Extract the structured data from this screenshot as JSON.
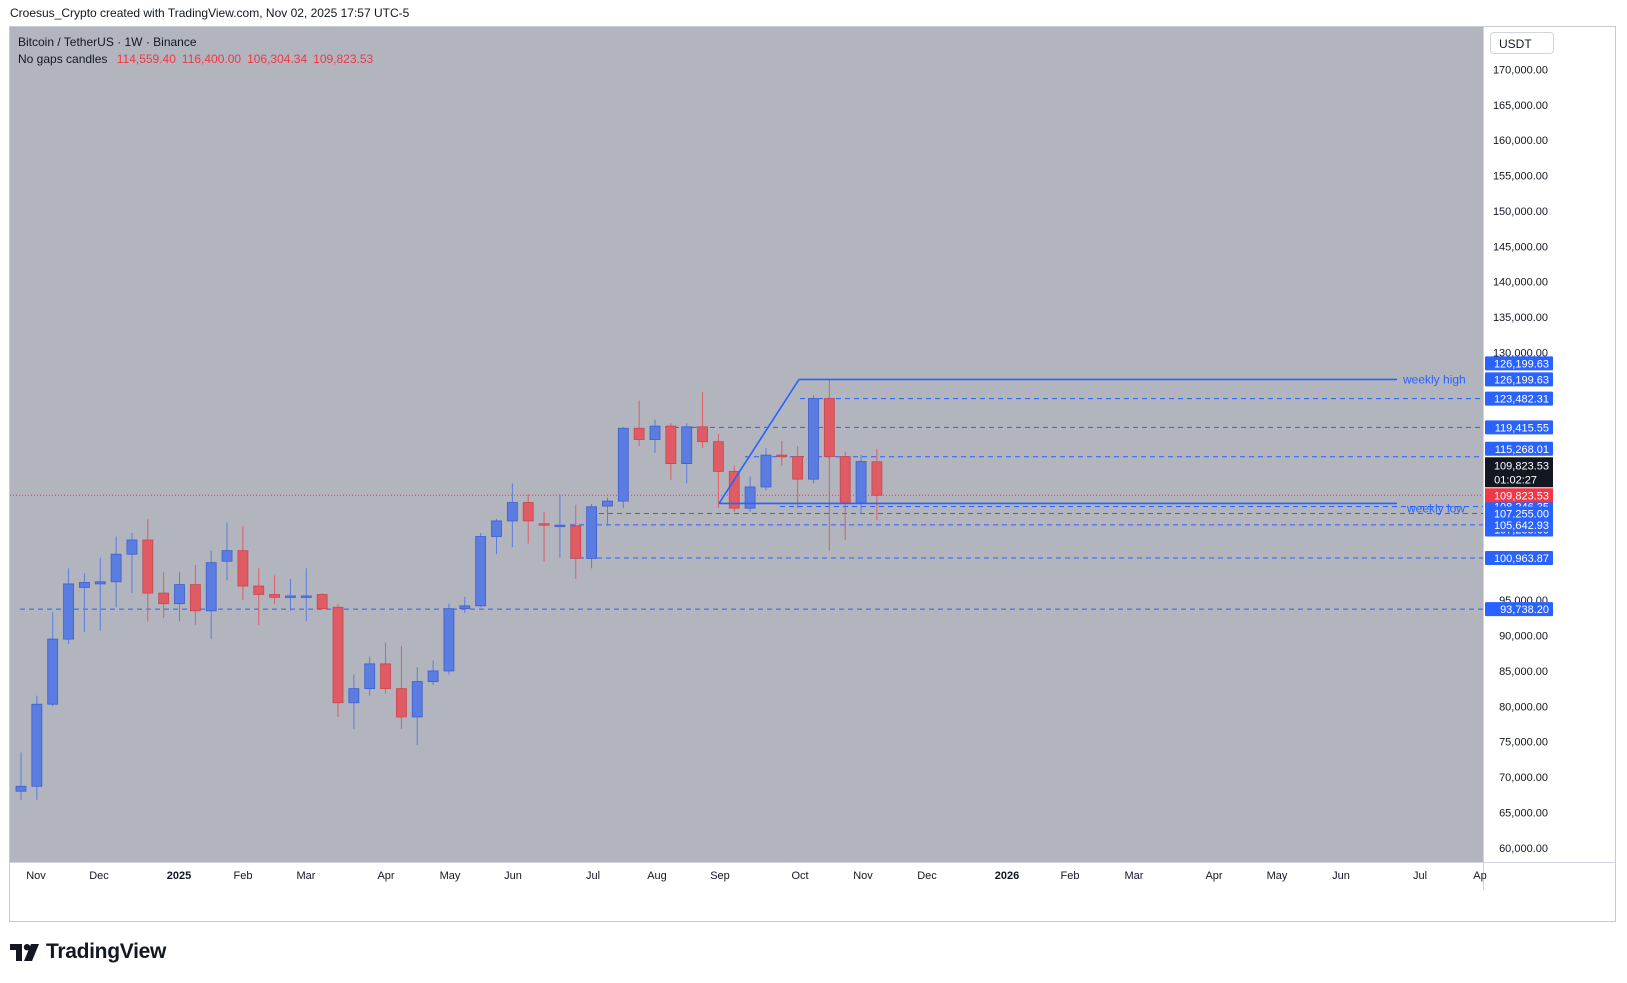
{
  "header": {
    "attribution": "Croesus_Crypto created with TradingView.com, Nov 02, 2025 17:57 UTC-5"
  },
  "legend": {
    "symbol": "Bitcoin / TetherUS · 1W · Binance",
    "candle_type": "No gaps candles",
    "ohlc": [
      "114,559.40",
      "116,400.00",
      "106,304.34",
      "109,823.53"
    ]
  },
  "currency_button": "USDT",
  "branding": {
    "text": "TradingView"
  },
  "colors": {
    "background": "#b2b5be",
    "up": "#5b7ce0",
    "down": "#e05b63",
    "line": "#2962ff",
    "price_line": "#f23645"
  },
  "chart_data": {
    "type": "candlestick",
    "interval": "1W",
    "y_axis": {
      "range": [
        58000,
        176000
      ],
      "ticks": [
        60000,
        65000,
        70000,
        75000,
        80000,
        85000,
        90000,
        95000,
        130000,
        135000,
        140000,
        145000,
        150000,
        155000,
        160000,
        165000,
        170000
      ],
      "tick_labels": [
        "60,000.00",
        "65,000.00",
        "70,000.00",
        "75,000.00",
        "80,000.00",
        "85,000.00",
        "90,000.00",
        "95,000.00",
        "130,000.00",
        "135,000.00",
        "140,000.00",
        "145,000.00",
        "150,000.00",
        "155,000.00",
        "160,000.00",
        "165,000.00",
        "170,000.00"
      ]
    },
    "x_axis": {
      "labels": [
        "Nov",
        "Dec",
        "2025",
        "Feb",
        "Mar",
        "Apr",
        "May",
        "Jun",
        "Jul",
        "Aug",
        "Sep",
        "Oct",
        "Nov",
        "Dec",
        "2026",
        "Feb",
        "Mar",
        "Apr",
        "May",
        "Jun",
        "Jul",
        "Ap"
      ],
      "bold": [
        "2025",
        "2026"
      ]
    },
    "candles": [
      {
        "o": 68000,
        "h": 73500,
        "l": 66800,
        "c": 68700
      },
      {
        "o": 68700,
        "h": 81500,
        "l": 66800,
        "c": 80300
      },
      {
        "o": 80300,
        "h": 93300,
        "l": 80000,
        "c": 89500
      },
      {
        "o": 89500,
        "h": 99500,
        "l": 88800,
        "c": 97300
      },
      {
        "o": 96800,
        "h": 98800,
        "l": 90500,
        "c": 97500
      },
      {
        "o": 97300,
        "h": 101000,
        "l": 90700,
        "c": 97600
      },
      {
        "o": 97600,
        "h": 104000,
        "l": 94000,
        "c": 101500
      },
      {
        "o": 101500,
        "h": 104500,
        "l": 96000,
        "c": 103500
      },
      {
        "o": 103500,
        "h": 106500,
        "l": 92000,
        "c": 96000
      },
      {
        "o": 96000,
        "h": 99000,
        "l": 92500,
        "c": 94500
      },
      {
        "o": 94500,
        "h": 99000,
        "l": 92000,
        "c": 97200
      },
      {
        "o": 97200,
        "h": 100000,
        "l": 91500,
        "c": 93500
      },
      {
        "o": 93500,
        "h": 102000,
        "l": 89500,
        "c": 100300
      },
      {
        "o": 100500,
        "h": 106000,
        "l": 97800,
        "c": 102000
      },
      {
        "o": 102000,
        "h": 105500,
        "l": 95000,
        "c": 97000
      },
      {
        "o": 97000,
        "h": 99500,
        "l": 91500,
        "c": 95800
      },
      {
        "o": 95800,
        "h": 98500,
        "l": 94500,
        "c": 95400
      },
      {
        "o": 95400,
        "h": 98000,
        "l": 93500,
        "c": 95600
      },
      {
        "o": 95600,
        "h": 99500,
        "l": 92000,
        "c": 95600
      },
      {
        "o": 95800,
        "h": 96000,
        "l": 94000,
        "c": 93800
      },
      {
        "o": 94000,
        "h": 94500,
        "l": 78500,
        "c": 80500
      },
      {
        "o": 80500,
        "h": 84500,
        "l": 76800,
        "c": 82500
      },
      {
        "o": 82500,
        "h": 87000,
        "l": 81500,
        "c": 86000
      },
      {
        "o": 86000,
        "h": 89000,
        "l": 81800,
        "c": 82500
      },
      {
        "o": 82500,
        "h": 88500,
        "l": 76800,
        "c": 78500
      },
      {
        "o": 78500,
        "h": 85500,
        "l": 74500,
        "c": 83500
      },
      {
        "o": 83500,
        "h": 86500,
        "l": 83000,
        "c": 85000
      },
      {
        "o": 85000,
        "h": 94500,
        "l": 84500,
        "c": 93800
      },
      {
        "o": 93800,
        "h": 95500,
        "l": 93200,
        "c": 94200
      },
      {
        "o": 94200,
        "h": 104500,
        "l": 94000,
        "c": 104000
      },
      {
        "o": 104000,
        "h": 106500,
        "l": 101500,
        "c": 106200
      },
      {
        "o": 106200,
        "h": 111500,
        "l": 102500,
        "c": 108800
      },
      {
        "o": 108800,
        "h": 110000,
        "l": 103000,
        "c": 106200
      },
      {
        "o": 105800,
        "h": 107500,
        "l": 100500,
        "c": 105600
      },
      {
        "o": 105500,
        "h": 110000,
        "l": 101000,
        "c": 105600
      },
      {
        "o": 105500,
        "h": 108500,
        "l": 98000,
        "c": 100900
      },
      {
        "o": 100900,
        "h": 108600,
        "l": 99500,
        "c": 108200
      },
      {
        "o": 108300,
        "h": 109500,
        "l": 105500,
        "c": 109000
      },
      {
        "o": 109000,
        "h": 119500,
        "l": 108000,
        "c": 119300
      },
      {
        "o": 119300,
        "h": 123200,
        "l": 116800,
        "c": 117700
      },
      {
        "o": 117700,
        "h": 120500,
        "l": 115800,
        "c": 119600
      },
      {
        "o": 119600,
        "h": 120000,
        "l": 112000,
        "c": 114300
      },
      {
        "o": 114300,
        "h": 120000,
        "l": 111500,
        "c": 119500
      },
      {
        "o": 119500,
        "h": 124400,
        "l": 116500,
        "c": 117400
      },
      {
        "o": 117400,
        "h": 118500,
        "l": 108000,
        "c": 113200
      },
      {
        "o": 113200,
        "h": 114000,
        "l": 107500,
        "c": 108000
      },
      {
        "o": 108000,
        "h": 112500,
        "l": 107500,
        "c": 111000
      },
      {
        "o": 111000,
        "h": 116500,
        "l": 110500,
        "c": 115500
      },
      {
        "o": 115500,
        "h": 117500,
        "l": 114000,
        "c": 115300
      },
      {
        "o": 115300,
        "h": 116800,
        "l": 108000,
        "c": 112100
      },
      {
        "o": 112100,
        "h": 124000,
        "l": 111500,
        "c": 123500
      },
      {
        "o": 123500,
        "h": 126199.63,
        "l": 102000,
        "c": 115300
      },
      {
        "o": 115300,
        "h": 116000,
        "l": 103500,
        "c": 108700
      },
      {
        "o": 108700,
        "h": 115500,
        "l": 107200,
        "c": 114600
      },
      {
        "o": 114559.4,
        "h": 116400.0,
        "l": 106304.34,
        "c": 109823.53
      }
    ],
    "drawings": [
      {
        "type": "ray",
        "label": "weekly high",
        "price": 126199.63
      },
      {
        "type": "ray",
        "label": "weekly low",
        "price": 107255.0
      }
    ],
    "dashed_levels": [
      123482.31,
      119415.55,
      115268.01,
      108246.35,
      107255.0,
      105642.93,
      100963.87,
      93738.2
    ],
    "price_tags": [
      {
        "price": 126199.63,
        "label": "126,199.63",
        "y_offset": -16
      },
      {
        "price": 126199.63,
        "label": "126,199.63",
        "y_offset": 0
      },
      {
        "price": 123482.31,
        "label": "123,482.31",
        "y_offset": 0
      },
      {
        "price": 119415.55,
        "label": "119,415.55",
        "y_offset": 0
      },
      {
        "price": 115268.01,
        "label": "115,268.01",
        "y_offset": -8
      },
      {
        "price": 108246.35,
        "label": "108,246.35",
        "y_offset": 0
      },
      {
        "price": 107255.0,
        "label": "107,255.00",
        "y_offset": 0
      },
      {
        "price": 107255.0,
        "label": "107,255.00",
        "y_offset": 16
      },
      {
        "price": 105642.93,
        "label": "105,642.93",
        "y_offset": 0
      },
      {
        "price": 100963.87,
        "label": "100,963.87",
        "y_offset": 0
      },
      {
        "price": 93738.2,
        "label": "93,738.20",
        "y_offset": 0
      }
    ],
    "last_price": {
      "price": 109823.53,
      "label": "109,823.53",
      "countdown": "01:02:27"
    }
  }
}
